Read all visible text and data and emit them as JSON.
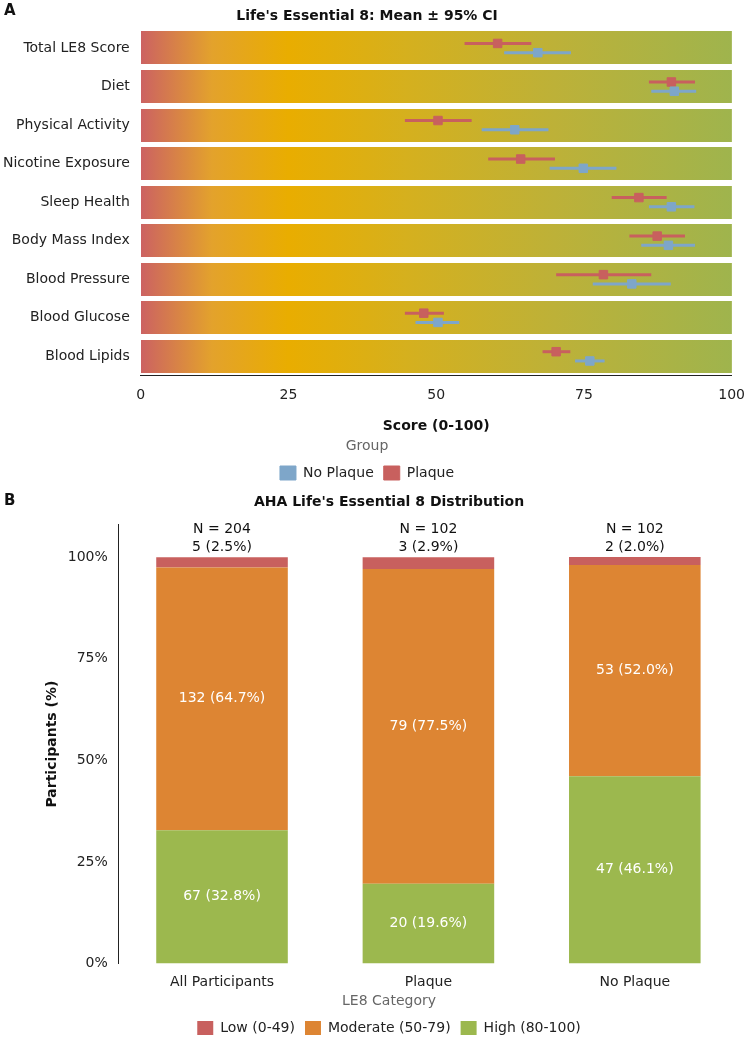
{
  "chart_data": [
    {
      "type": "scatter",
      "orientation": "horizontal",
      "title": "Life's Essential 8: Mean ± 95% CI",
      "xlabel": "Score (0-100)",
      "annotations": [
        "A"
      ],
      "categories": [
        "Total LE8 Score",
        "Diet",
        "Physical Activity",
        "Nicotine Exposure",
        "Sleep Health",
        "Body Mass Index",
        "Blood Pressure",
        "Blood Glucose",
        "Blood Lipids"
      ],
      "series": [
        {
          "name": "No Plaque",
          "color": "#7ea6c9",
          "values": [
            67.2,
            90.3,
            63.3,
            74.9,
            89.8,
            89.3,
            83.1,
            50.3,
            76.0
          ],
          "errors": [
            [
              61.5,
              72.8
            ],
            [
              86.4,
              94.0
            ],
            [
              57.7,
              69.0
            ],
            [
              69.2,
              80.5
            ],
            [
              86.0,
              93.7
            ],
            [
              84.7,
              93.8
            ],
            [
              76.5,
              89.7
            ],
            [
              46.5,
              53.9
            ],
            [
              73.5,
              78.5
            ]
          ]
        },
        {
          "name": "Plaque",
          "color": "#c8605e",
          "values": [
            60.4,
            89.8,
            50.3,
            64.3,
            84.3,
            87.4,
            78.3,
            47.9,
            70.3
          ],
          "errors": [
            [
              54.8,
              66.1
            ],
            [
              86.0,
              93.8
            ],
            [
              44.7,
              56.0
            ],
            [
              58.8,
              70.1
            ],
            [
              79.7,
              89.0
            ],
            [
              82.7,
              92.1
            ],
            [
              70.3,
              86.4
            ],
            [
              44.7,
              51.3
            ],
            [
              68.0,
              72.7
            ]
          ]
        }
      ],
      "xlim": [
        0,
        100
      ],
      "xticks": [
        0,
        25,
        50,
        75,
        100
      ],
      "marker": "square",
      "legend": "bottom",
      "legend_title": "Group"
    },
    {
      "type": "bar",
      "stacked": true,
      "title": "AHA Life's Essential 8 Distribution",
      "ylabel": "Participants (%)",
      "annotations": [
        "B",
        {
          "text": "N = 204",
          "x": "All Participants",
          "y": 100
        },
        {
          "text": "N = 102",
          "x": "Plaque",
          "y": 100
        },
        {
          "text": "N = 102",
          "x": "No Plaque",
          "y": 100
        }
      ],
      "categories": [
        "All Participants",
        "Plaque",
        "No Plaque"
      ],
      "series": [
        {
          "name": "High (80-100)",
          "color": "#9cb84e",
          "values": [
            32.8,
            19.6,
            46.1
          ],
          "value_labels": [
            "67 (32.8%)",
            "20 (19.6%)",
            "47 (46.1%)"
          ]
        },
        {
          "name": "Moderate (50-79)",
          "color": "#dd8533",
          "values": [
            64.7,
            77.5,
            52.0
          ],
          "value_labels": [
            "132 (64.7%)",
            "79 (77.5%)",
            "53 (52.0%)"
          ]
        },
        {
          "name": "Low (0-49)",
          "color": "#c8605e",
          "values": [
            2.5,
            2.9,
            2.0
          ],
          "value_labels": [
            "5 (2.5%)",
            "3 (2.9%)",
            "2 (2.0%)"
          ]
        }
      ],
      "ylim": [
        0,
        108
      ],
      "yticks": [
        {
          "value": 0,
          "label": "0%"
        },
        {
          "value": 25,
          "label": "25%"
        },
        {
          "value": 50,
          "label": "50%"
        },
        {
          "value": 75,
          "label": "75%"
        },
        {
          "value": 100,
          "label": "100%"
        }
      ],
      "legend": "bottom",
      "legend_title": "LE8 Category"
    }
  ]
}
